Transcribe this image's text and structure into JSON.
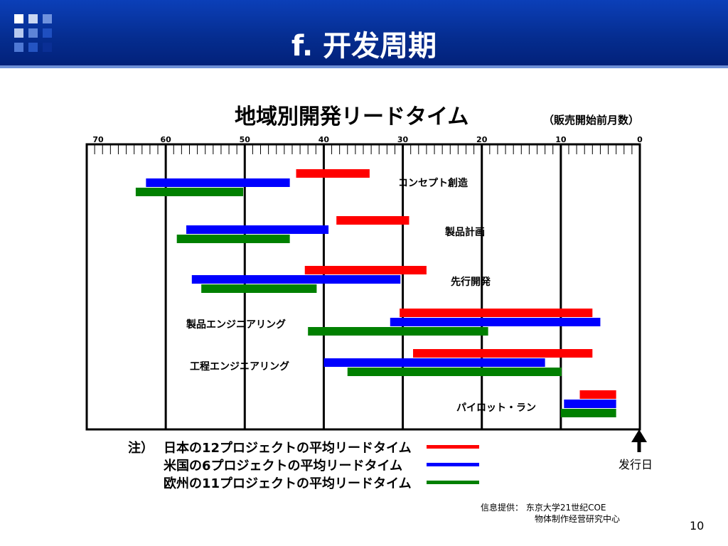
{
  "slide": {
    "title": "f. 开发周期",
    "source_line1": "信息提供： 东京大学21世纪COE",
    "source_line2": "物体制作经营研究中心",
    "page_number": "10",
    "release_label": "发行日"
  },
  "colors": {
    "header": "#052c8e",
    "red": "#ff0000",
    "blue": "#0000ff",
    "green": "#008000"
  },
  "chart_data": {
    "type": "bar",
    "orientation": "horizontal-range",
    "title": "地域別開発リードタイム",
    "unit_label": "（販売開始前月数）",
    "axis_ticks": [
      "70",
      "60",
      "50",
      "40",
      "30",
      "20",
      "10",
      "0"
    ],
    "xlim": [
      70,
      0
    ],
    "note_label": "注）",
    "series": [
      {
        "name": "日本の12プロジェクトの平均リードタイム",
        "color": "#ff0000"
      },
      {
        "name": "米国の6プロジェクトの平均リードタイム",
        "color": "#0000ff"
      },
      {
        "name": "欧州の11プロジェクトの平均リードタイム",
        "color": "#008000"
      }
    ],
    "categories": [
      {
        "label": "コンセプト創造",
        "ranges": [
          [
            43.5,
            34.2
          ],
          [
            62.5,
            44.3
          ],
          [
            63.8,
            50.2
          ]
        ]
      },
      {
        "label": "製品計画",
        "ranges": [
          [
            38.4,
            29.2
          ],
          [
            57.4,
            39.4
          ],
          [
            58.6,
            44.3
          ]
        ]
      },
      {
        "label": "先行開発",
        "ranges": [
          [
            42.4,
            27.0
          ],
          [
            56.7,
            30.3
          ],
          [
            55.5,
            40.9
          ]
        ]
      },
      {
        "label": "製品エンジニアリング",
        "ranges": [
          [
            30.4,
            6.0
          ],
          [
            31.6,
            5.0
          ],
          [
            42.0,
            19.2
          ]
        ]
      },
      {
        "label": "工程エンジニアリング",
        "ranges": [
          [
            28.7,
            6.0
          ],
          [
            40.0,
            12.0
          ],
          [
            37.0,
            9.9
          ]
        ]
      },
      {
        "label": "パイロット・ラン",
        "ranges": [
          [
            7.6,
            3.0
          ],
          [
            9.6,
            3.0
          ],
          [
            10.0,
            3.0
          ]
        ]
      }
    ]
  }
}
